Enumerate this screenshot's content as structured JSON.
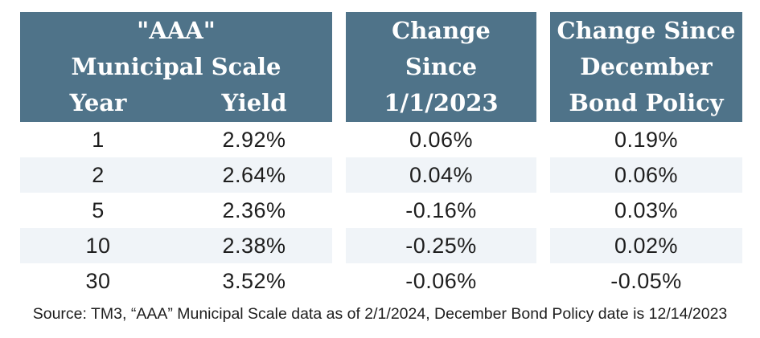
{
  "colors": {
    "header_bg": "#4F7389",
    "header_text": "#FFFFFF",
    "stripe_bg": "#F0F4F8",
    "data_text": "#1E1E1E",
    "page_bg": "#FFFFFF"
  },
  "table": {
    "group1": {
      "title_line1": "\"AAA\"",
      "title_line2": "Municipal Scale",
      "col_year": "Year",
      "col_yield": "Yield"
    },
    "group2": {
      "line1": "Change",
      "line2": "Since",
      "line3": "1/1/2023"
    },
    "group3": {
      "line1": "Change Since",
      "line2": "December",
      "line3": "Bond Policy"
    },
    "rows": [
      {
        "year": "1",
        "yield": "2.92%",
        "change_since_2023": "0.06%",
        "change_since_policy": "0.19%"
      },
      {
        "year": "2",
        "yield": "2.64%",
        "change_since_2023": "0.04%",
        "change_since_policy": "0.06%"
      },
      {
        "year": "5",
        "yield": "2.36%",
        "change_since_2023": "-0.16%",
        "change_since_policy": "0.03%"
      },
      {
        "year": "10",
        "yield": "2.38%",
        "change_since_2023": "-0.25%",
        "change_since_policy": "0.02%"
      },
      {
        "year": "30",
        "yield": "3.52%",
        "change_since_2023": "-0.06%",
        "change_since_policy": "-0.05%"
      }
    ]
  },
  "footer": {
    "source": "Source: TM3, “AAA” Municipal Scale data as of 2/1/2024, December Bond Policy date is 12/14/2023"
  },
  "chart_data": {
    "type": "table",
    "title": "\"AAA\" Municipal Scale",
    "columns": [
      "Year",
      "Yield",
      "Change Since 1/1/2023",
      "Change Since December Bond Policy"
    ],
    "rows": [
      [
        "1",
        "2.92%",
        "0.06%",
        "0.19%"
      ],
      [
        "2",
        "2.64%",
        "0.04%",
        "0.06%"
      ],
      [
        "5",
        "2.36%",
        "-0.16%",
        "0.03%"
      ],
      [
        "10",
        "2.38%",
        "-0.25%",
        "0.02%"
      ],
      [
        "30",
        "3.52%",
        "-0.06%",
        "-0.05%"
      ]
    ],
    "source_note": "Source: TM3, “AAA” Municipal Scale data as of 2/1/2024, December Bond Policy date is 12/14/2023",
    "layout_hints": {
      "striped_rows": [
        2,
        4
      ],
      "header_style": "slate-blue blocks with white serif text",
      "column_groups": [
        "Year+Yield",
        "Change Since 1/1/2023",
        "Change Since December Bond Policy"
      ]
    }
  }
}
